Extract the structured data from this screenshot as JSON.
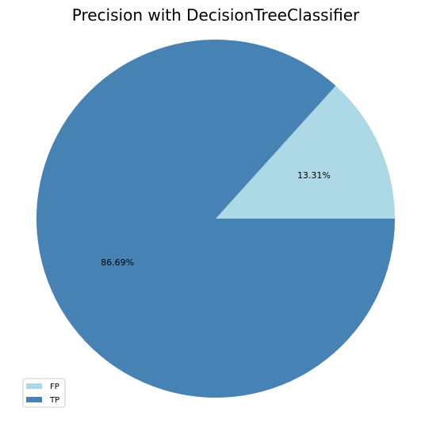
{
  "chart_data": {
    "type": "pie",
    "title": "Precision with DecisionTreeClassifier",
    "slices": [
      {
        "label": "FP",
        "value": 13.31,
        "pct_label": "13.31%",
        "color": "#add8e6"
      },
      {
        "label": "TP",
        "value": 86.69,
        "pct_label": "86.69%",
        "color": "#4682b4"
      }
    ],
    "start_angle_deg": 0,
    "direction": "counterclockwise",
    "legend": {
      "placement": "lower-left"
    }
  }
}
